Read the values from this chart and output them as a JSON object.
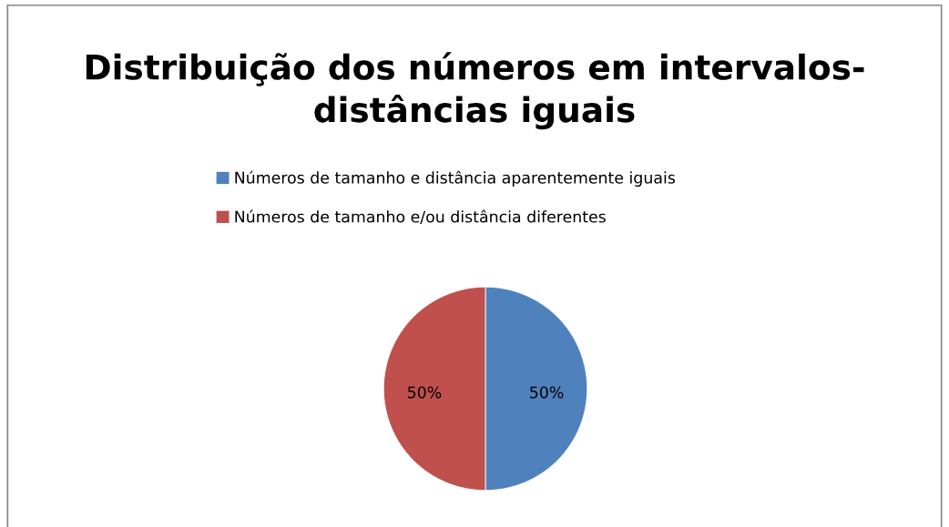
{
  "chart_data": {
    "type": "pie",
    "title": "Distribuição dos números em intervalos-\ndistâncias iguais",
    "categories": [
      "Números de tamanho e distância aparentemente iguais",
      "Números de tamanho e/ou distância diferentes"
    ],
    "values": [
      50,
      50
    ],
    "colors": [
      "#4f81bd",
      "#c0504d"
    ],
    "value_labels": [
      "50%",
      "50%"
    ],
    "legend": "top"
  }
}
